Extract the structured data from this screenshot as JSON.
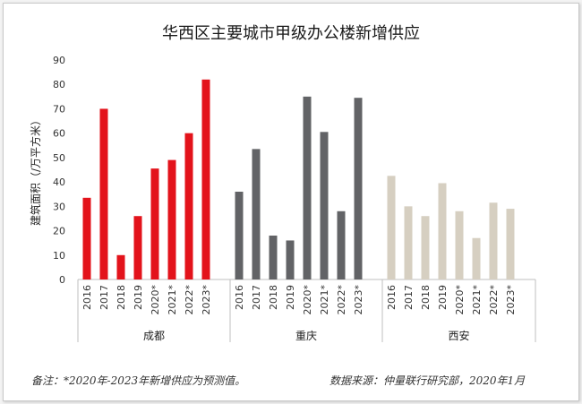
{
  "chart_data": {
    "type": "bar",
    "title": "华西区主要城市甲级办公楼新增供应",
    "ylabel": "建筑面积（/万平方米）",
    "ylim": [
      0,
      90
    ],
    "yticks": [
      0,
      10,
      20,
      30,
      40,
      50,
      60,
      70,
      80,
      90
    ],
    "grid": false,
    "legend": "none",
    "categories": [
      "2016",
      "2017",
      "2018",
      "2019",
      "2020*",
      "2021*",
      "2022*",
      "2023*"
    ],
    "groups": [
      {
        "name": "成都",
        "color": "#e3131b",
        "values": [
          33.5,
          70,
          10,
          26,
          45.5,
          49,
          60,
          82
        ]
      },
      {
        "name": "重庆",
        "color": "#626366",
        "values": [
          36,
          53.5,
          18,
          16,
          75,
          60.5,
          28,
          74.5
        ]
      },
      {
        "name": "西安",
        "color": "#d6cfc1",
        "values": [
          42.5,
          30,
          26,
          39.5,
          28,
          17,
          31.5,
          29
        ]
      }
    ]
  },
  "footnote": {
    "note": "备注：*2020年-2023年新增供应为预测值。",
    "source": "数据来源：仲量联行研究部，2020年1月"
  }
}
